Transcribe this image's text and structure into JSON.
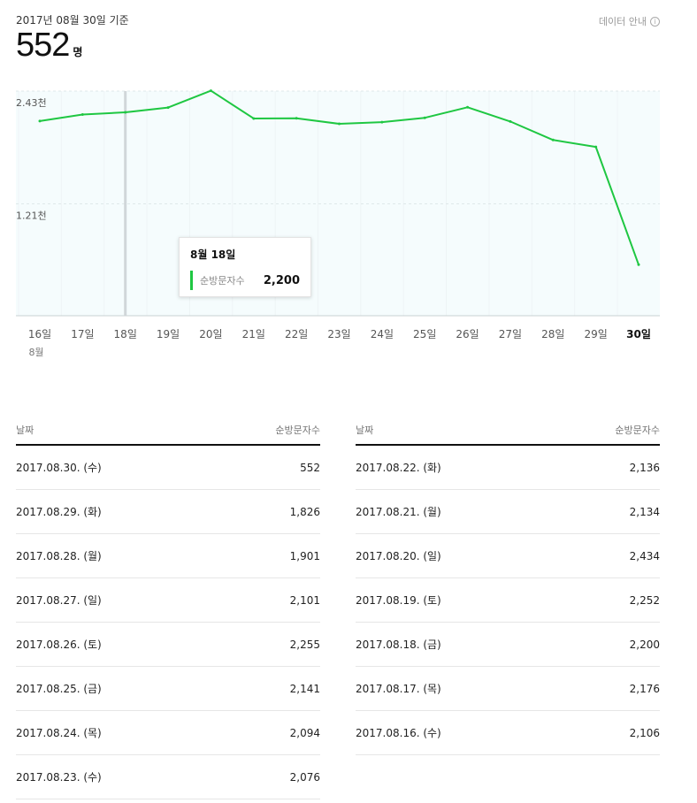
{
  "header": {
    "date_basis": "2017년 08월 30일 기준",
    "count": "552",
    "unit": "명",
    "info_label": "데이터 안내"
  },
  "chart_data": {
    "type": "line",
    "x": [
      "16일",
      "17일",
      "18일",
      "19일",
      "20일",
      "21일",
      "22일",
      "23일",
      "24일",
      "25일",
      "26일",
      "27일",
      "28일",
      "29일",
      "30일"
    ],
    "month_label": "8월",
    "series": [
      {
        "values": [
          2106,
          2176,
          2200,
          2252,
          2434,
          2134,
          2136,
          2076,
          2094,
          2141,
          2255,
          2101,
          1901,
          1826,
          552
        ]
      }
    ],
    "y_ticks": [
      {
        "value": 2430,
        "label": "2.43천"
      },
      {
        "value": 1210,
        "label": "1.21천"
      }
    ],
    "ylim": [
      0,
      2430
    ],
    "highlight_index": 2,
    "grid": true,
    "line_color": "#1fc742"
  },
  "tooltip": {
    "date": "8월 18일",
    "label": "순방문자수",
    "value": "2,200"
  },
  "table": {
    "col_date": "날짜",
    "col_value": "순방문자수",
    "left_rows": [
      {
        "date": "2017.08.30. (수)",
        "value": "552"
      },
      {
        "date": "2017.08.29. (화)",
        "value": "1,826"
      },
      {
        "date": "2017.08.28. (월)",
        "value": "1,901"
      },
      {
        "date": "2017.08.27. (일)",
        "value": "2,101"
      },
      {
        "date": "2017.08.26. (토)",
        "value": "2,255"
      },
      {
        "date": "2017.08.25. (금)",
        "value": "2,141"
      },
      {
        "date": "2017.08.24. (목)",
        "value": "2,094"
      },
      {
        "date": "2017.08.23. (수)",
        "value": "2,076"
      }
    ],
    "right_rows": [
      {
        "date": "2017.08.22. (화)",
        "value": "2,136"
      },
      {
        "date": "2017.08.21. (월)",
        "value": "2,134"
      },
      {
        "date": "2017.08.20. (일)",
        "value": "2,434"
      },
      {
        "date": "2017.08.19. (토)",
        "value": "2,252"
      },
      {
        "date": "2017.08.18. (금)",
        "value": "2,200"
      },
      {
        "date": "2017.08.17. (목)",
        "value": "2,176"
      },
      {
        "date": "2017.08.16. (수)",
        "value": "2,106"
      }
    ]
  }
}
